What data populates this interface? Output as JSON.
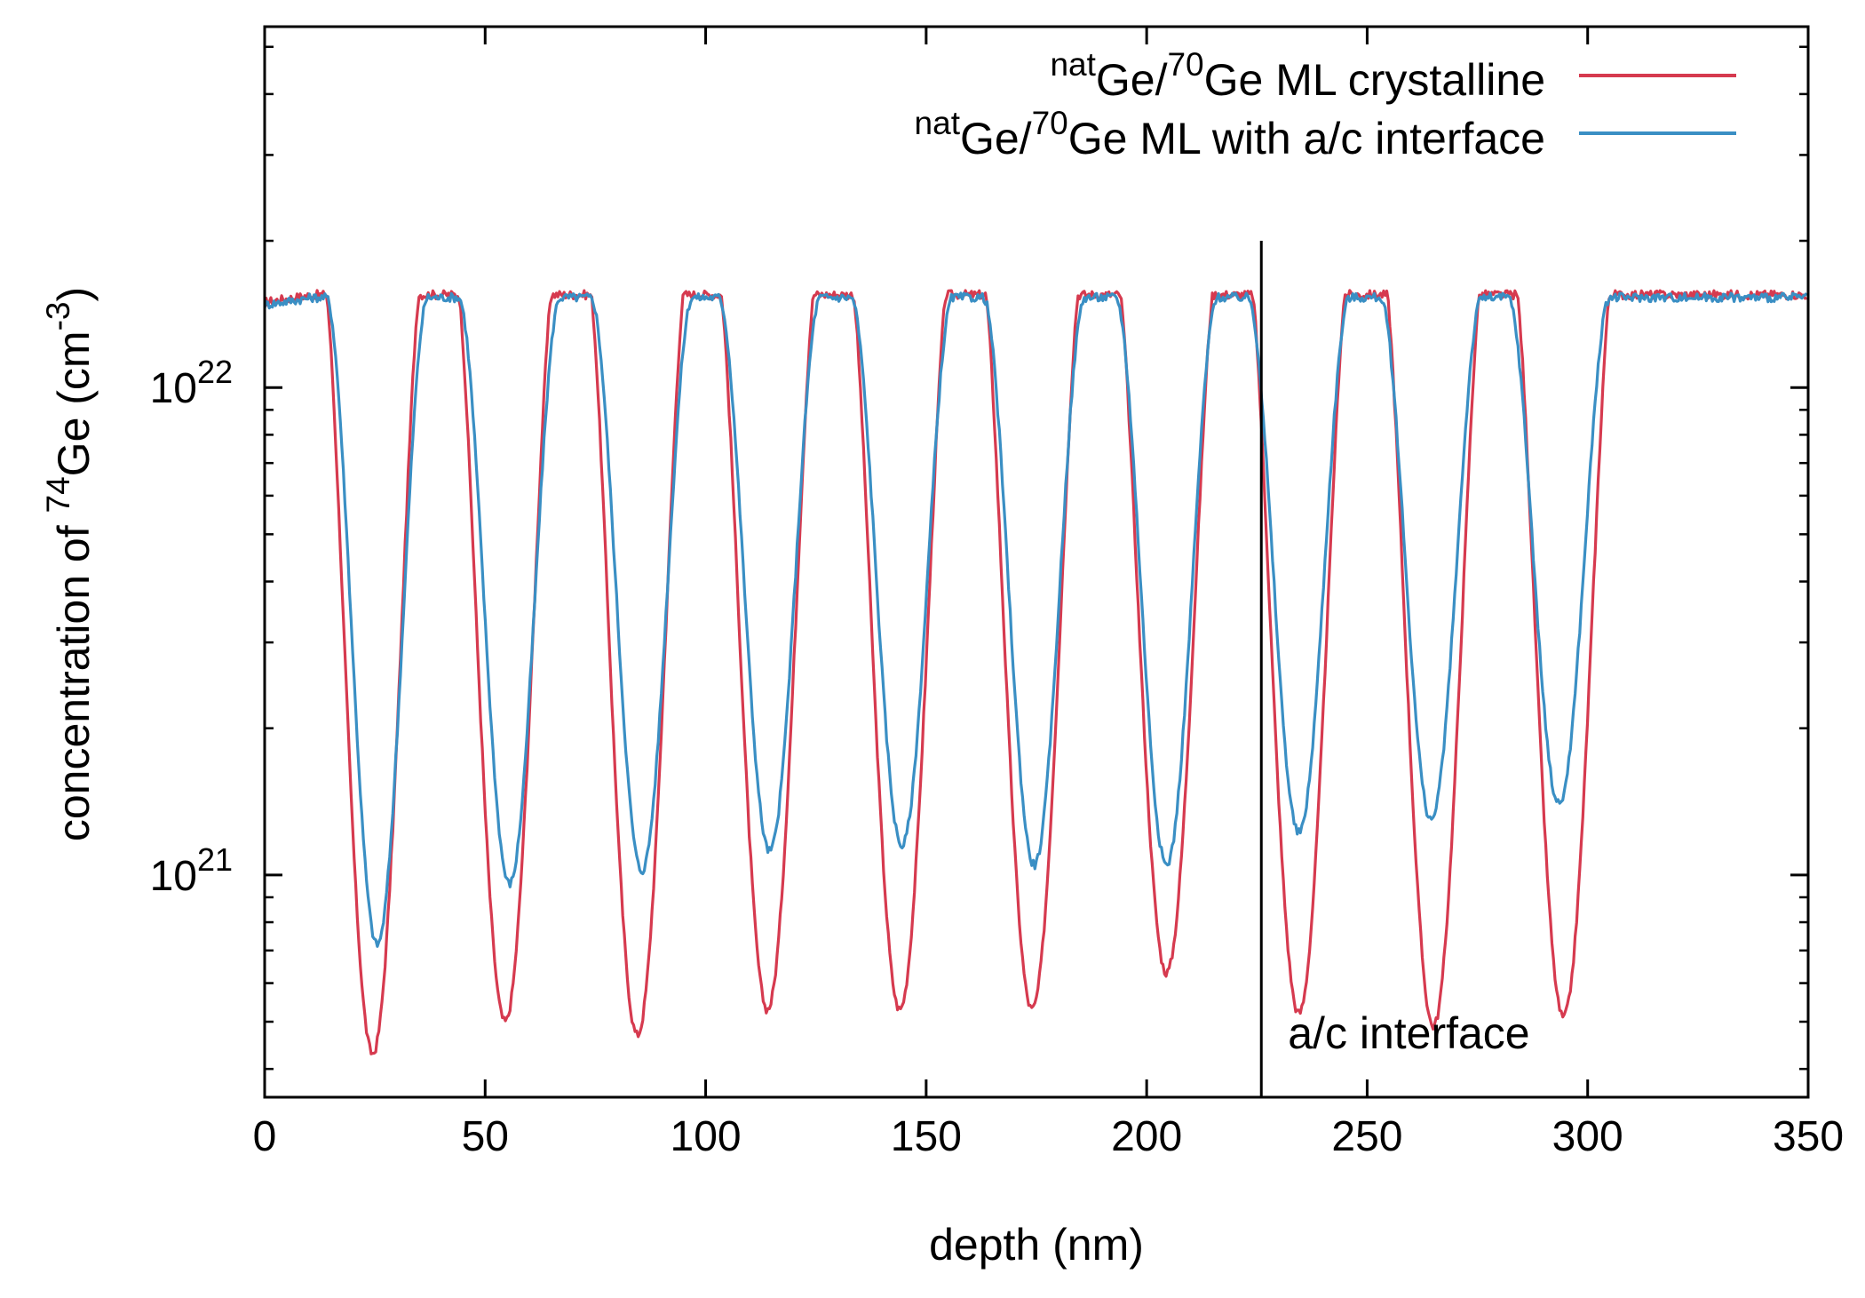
{
  "chart_data": {
    "type": "line",
    "xlabel": "depth (nm)",
    "ylabel": {
      "prefix": "concentration of ",
      "isotope": "74",
      "element": "Ge",
      "unit_open": " (cm",
      "unit_exp": "-3",
      "unit_close": ")"
    },
    "y_scale": "log",
    "xlim": [
      0,
      350
    ],
    "ylim": [
      3.5e+20,
      5.5e+22
    ],
    "x_ticks": [
      {
        "value": 0,
        "label": "0"
      },
      {
        "value": 50,
        "label": "50"
      },
      {
        "value": 100,
        "label": "100"
      },
      {
        "value": 150,
        "label": "150"
      },
      {
        "value": 200,
        "label": "200"
      },
      {
        "value": 250,
        "label": "250"
      },
      {
        "value": 300,
        "label": "300"
      },
      {
        "value": 350,
        "label": "350"
      }
    ],
    "y_ticks": [
      {
        "value": 1e+21,
        "base": "10",
        "exp": "21"
      },
      {
        "value": 1e+22,
        "base": "10",
        "exp": "22"
      }
    ],
    "legend_position": "top-right",
    "series": [
      {
        "name_parts": [
          "nat",
          "Ge/",
          "70",
          "Ge ML crystalline"
        ],
        "color": "#d63a4f",
        "plateau": 1.55e+22,
        "edge_start": 11,
        "edge_end": 303,
        "half_width": 10.5,
        "sharpness": 1.4,
        "minima": [
          {
            "x": 24.5,
            "y": 4.3e+20
          },
          {
            "x": 54.5,
            "y": 5e+20
          },
          {
            "x": 84.5,
            "y": 4.7e+20
          },
          {
            "x": 114.0,
            "y": 5.3e+20
          },
          {
            "x": 144.0,
            "y": 5.3e+20
          },
          {
            "x": 174.0,
            "y": 5.3e+20
          },
          {
            "x": 204.5,
            "y": 6.3e+20
          },
          {
            "x": 234.5,
            "y": 5.2e+20
          },
          {
            "x": 265.0,
            "y": 4.9e+20
          },
          {
            "x": 294.5,
            "y": 5.1e+20
          }
        ]
      },
      {
        "name_parts": [
          "nat",
          "Ge/",
          "70",
          "Ge ML with a/c interface"
        ],
        "color": "#3a8fc4",
        "plateau": 1.53e+22,
        "edge_start": 11,
        "edge_end": 303,
        "half_width": 11.5,
        "sharpness": 1.9,
        "minima": [
          {
            "x": 25.5,
            "y": 7.2e+20
          },
          {
            "x": 55.5,
            "y": 9.6e+20
          },
          {
            "x": 85.5,
            "y": 1.02e+21
          },
          {
            "x": 114.5,
            "y": 1.12e+21
          },
          {
            "x": 144.5,
            "y": 1.15e+21
          },
          {
            "x": 174.5,
            "y": 1.05e+21
          },
          {
            "x": 204.5,
            "y": 1.05e+21
          },
          {
            "x": 234.5,
            "y": 1.22e+21
          },
          {
            "x": 264.5,
            "y": 1.3e+21
          },
          {
            "x": 293.5,
            "y": 1.4e+21
          }
        ]
      }
    ],
    "annotations": [
      {
        "type": "vline",
        "x": 226,
        "y_top": 2e+22,
        "label": "a/c interface"
      }
    ]
  }
}
